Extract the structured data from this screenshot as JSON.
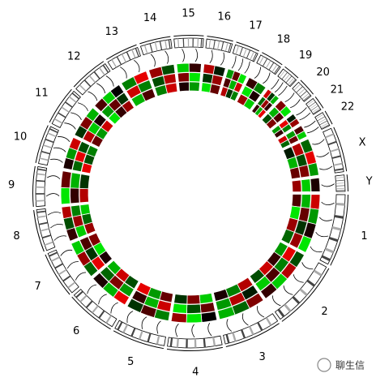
{
  "chart_data": {
    "type": "circos",
    "chromosomes": [
      "1",
      "2",
      "3",
      "4",
      "5",
      "6",
      "7",
      "8",
      "9",
      "10",
      "11",
      "12",
      "13",
      "14",
      "15",
      "16",
      "17",
      "18",
      "19",
      "20",
      "21",
      "22",
      "X",
      "Y"
    ],
    "lengths": [
      249,
      242,
      198,
      190,
      181,
      171,
      159,
      145,
      138,
      134,
      135,
      133,
      114,
      107,
      102,
      90,
      83,
      80,
      59,
      64,
      47,
      51,
      156,
      57
    ],
    "value_range": [
      -1,
      1
    ],
    "colors": {
      "low": "#00ff00",
      "mid": "#000000",
      "high": "#ff0000"
    },
    "tracks": [
      {
        "values": [
          [
            0.8,
            -0.6,
            0.1,
            -0.9
          ],
          [
            -0.3,
            0.7,
            -0.8,
            0.2
          ],
          [
            0.5,
            -0.4,
            -0.7
          ],
          [
            0,
            -0.9,
            0.6
          ],
          [
            -0.5,
            0.3,
            -0.2
          ],
          [
            0.9,
            -0.7,
            0.1
          ],
          [
            -0.4,
            0.6,
            -0.8
          ],
          [
            0.2,
            -0.3,
            0.7
          ],
          [
            -0.9,
            0.4
          ],
          [
            0.1,
            -0.6,
            0.8
          ],
          [
            -0.2,
            0.5,
            -0.7
          ],
          [
            0.3,
            -0.8,
            0
          ],
          [
            -0.5,
            0.9
          ],
          [
            0.6,
            -0.3
          ],
          [
            -0.8,
            0.2
          ],
          [
            0.7,
            -0.1
          ],
          [
            -0.6,
            0.4,
            -0.9
          ],
          [
            0.2,
            -0.5
          ],
          [
            0.8,
            -0.2,
            -0.7
          ],
          [
            0.5,
            -0.9
          ],
          [
            -0.1,
            0.6
          ],
          [
            0.3,
            -0.8
          ],
          [
            -0.4,
            0.9,
            -0.6
          ],
          [
            0.1
          ]
        ]
      },
      {
        "values": [
          [
            -0.7,
            0.4,
            -0.2,
            0.6
          ],
          [
            0.9,
            -0.5,
            0.3,
            -0.8
          ],
          [
            -0.1,
            0.7,
            -0.6
          ],
          [
            0.4,
            -0.3,
            -0.9
          ],
          [
            0.8,
            -0.7,
            0.2
          ],
          [
            -0.6,
            0.5,
            -0.4
          ],
          [
            0.9,
            -0.2,
            0.3
          ],
          [
            -0.8,
            0.6,
            -0.5
          ],
          [
            0.2,
            -0.7
          ],
          [
            -0.4,
            0.9,
            -0.3
          ],
          [
            0.7,
            -0.8,
            0.1
          ],
          [
            -0.6,
            0.4,
            -0.2
          ],
          [
            0.8,
            -0.5
          ],
          [
            -0.3,
            0.7
          ],
          [
            0.5,
            -0.9
          ],
          [
            -0.2,
            0.6
          ],
          [
            0.3,
            -0.7,
            0.8
          ],
          [
            -0.9,
            0.1
          ],
          [
            -0.4,
            0.6,
            0.2
          ],
          [
            -0.7,
            0.3
          ],
          [
            0.9,
            -0.5
          ],
          [
            -0.6,
            0.4
          ],
          [
            0.7,
            -0.3,
            0.5
          ],
          [
            -0.8
          ]
        ]
      },
      {
        "values": [
          [
            0.3,
            -0.9,
            0.6,
            -0.4
          ],
          [
            -0.6,
            0.2,
            0.8,
            -0.3
          ],
          [
            0.7,
            -0.5,
            0.1
          ],
          [
            -0.8,
            0.5,
            -0.2
          ],
          [
            0.4,
            -0.6,
            0.9
          ],
          [
            -0.3,
            0.8,
            -0.7
          ],
          [
            0.1,
            -0.9,
            0.5
          ],
          [
            0.6,
            -0.4,
            -0.8
          ],
          [
            0.7,
            -0.2
          ],
          [
            0.9,
            -0.3,
            -0.5
          ],
          [
            0.4,
            -0.6,
            0.8
          ],
          [
            -0.9,
            0.2,
            0.6
          ],
          [
            -0.7,
            0.3
          ],
          [
            -0.5,
            0.8
          ],
          [
            0.1,
            -0.6
          ],
          [
            -0.9,
            0.4
          ],
          [
            0.7,
            -0.2,
            -0.5
          ],
          [
            0.6,
            -0.8
          ],
          [
            0.2,
            -0.7,
            0.9
          ],
          [
            -0.3,
            0.5
          ],
          [
            -0.6,
            0.2
          ],
          [
            0.8,
            -0.4
          ],
          [
            -0.1,
            -0.7,
            0.4
          ],
          [
            0.6
          ]
        ]
      }
    ]
  },
  "watermark": "聊生信"
}
